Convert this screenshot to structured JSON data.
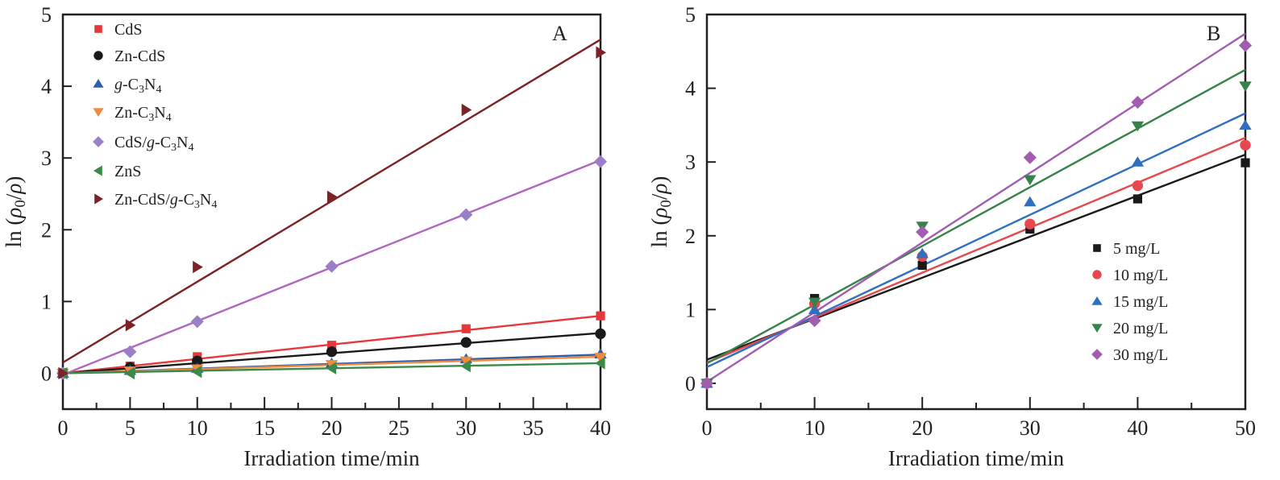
{
  "chart_data": [
    {
      "type": "scatter",
      "panel_label": "A",
      "xlabel": "Irradiation time/min",
      "ylabel": "ln (ρ0/ρ)",
      "ylabel_parts": {
        "prefix": "ln (",
        "rho": "ρ",
        "sub": "0",
        "slash": "/",
        "rho2": "ρ",
        "suffix": ")"
      },
      "xlim": [
        0,
        40
      ],
      "ylim": [
        -0.5,
        5
      ],
      "xticks": [
        0,
        5,
        10,
        15,
        20,
        25,
        30,
        35,
        40
      ],
      "yticks": [
        0,
        1,
        2,
        3,
        4,
        5
      ],
      "grid": false,
      "legend_position": "top-left",
      "series": [
        {
          "name": "CdS",
          "label_parts": [
            {
              "t": "CdS"
            }
          ],
          "marker": "square",
          "color": "#e8373a",
          "x": [
            0,
            5,
            10,
            20,
            30,
            40
          ],
          "y": [
            0,
            0.1,
            0.23,
            0.39,
            0.62,
            0.8
          ],
          "fit": [
            0.0,
            0.8
          ]
        },
        {
          "name": "Zn-CdS",
          "label_parts": [
            {
              "t": "Zn-CdS"
            }
          ],
          "marker": "circle",
          "color": "#1a1a1a",
          "x": [
            0,
            5,
            10,
            20,
            30,
            40
          ],
          "y": [
            0,
            0.08,
            0.17,
            0.3,
            0.43,
            0.55
          ],
          "fit": [
            0.0,
            0.56
          ]
        },
        {
          "name": "g-C3N4",
          "label_parts": [
            {
              "t": "g",
              "i": true
            },
            {
              "t": "-C"
            },
            {
              "t": "3",
              "sub": true
            },
            {
              "t": "N"
            },
            {
              "t": "4",
              "sub": true
            }
          ],
          "marker": "triangle-up",
          "color": "#2f5ea8",
          "x": [
            0,
            5,
            10,
            20,
            30,
            40
          ],
          "y": [
            0,
            0.04,
            0.07,
            0.14,
            0.2,
            0.27
          ],
          "fit": [
            0.0,
            0.26
          ]
        },
        {
          "name": "Zn-C3N4",
          "label_parts": [
            {
              "t": "Zn-C"
            },
            {
              "t": "3",
              "sub": true
            },
            {
              "t": "N"
            },
            {
              "t": "4",
              "sub": true
            }
          ],
          "marker": "triangle-down",
          "color": "#f08a3c",
          "x": [
            0,
            5,
            10,
            20,
            30,
            40
          ],
          "y": [
            0,
            0.03,
            0.06,
            0.12,
            0.17,
            0.22
          ],
          "fit": [
            0.0,
            0.23
          ]
        },
        {
          "name": "CdS/g-C3N4",
          "label_parts": [
            {
              "t": "CdS/"
            },
            {
              "t": "g",
              "i": true
            },
            {
              "t": "-C"
            },
            {
              "t": "3",
              "sub": true
            },
            {
              "t": "N"
            },
            {
              "t": "4",
              "sub": true
            }
          ],
          "marker": "diamond",
          "color": "#9b7fc6",
          "line_color": "#b066c0",
          "x": [
            0,
            5,
            10,
            20,
            30,
            40
          ],
          "y": [
            0,
            0.3,
            0.72,
            1.49,
            2.21,
            2.95
          ],
          "fit": [
            -0.02,
            2.97
          ]
        },
        {
          "name": "ZnS",
          "label_parts": [
            {
              "t": "ZnS"
            }
          ],
          "marker": "triangle-left",
          "color": "#3a8a4a",
          "x": [
            0,
            5,
            10,
            20,
            30,
            40
          ],
          "y": [
            0,
            0.0,
            0.02,
            0.07,
            0.1,
            0.14
          ],
          "fit": [
            0.0,
            0.14
          ]
        },
        {
          "name": "Zn-CdS/g-C3N4",
          "label_parts": [
            {
              "t": "Zn-CdS/"
            },
            {
              "t": "g",
              "i": true
            },
            {
              "t": "-C"
            },
            {
              "t": "3",
              "sub": true
            },
            {
              "t": "N"
            },
            {
              "t": "4",
              "sub": true
            }
          ],
          "marker": "triangle-right",
          "color": "#7b2226",
          "x": [
            0,
            5,
            10,
            20,
            30,
            40
          ],
          "y": [
            0,
            0.67,
            1.48,
            2.46,
            3.67,
            4.47
          ],
          "fit": [
            0.15,
            4.65
          ]
        }
      ]
    },
    {
      "type": "scatter",
      "panel_label": "B",
      "xlabel": "Irradiation time/min",
      "ylabel": "ln (ρ0/ρ)",
      "ylabel_parts": {
        "prefix": "ln (",
        "rho": "ρ",
        "sub": "0",
        "slash": "/",
        "rho2": "ρ",
        "suffix": ")"
      },
      "xlim": [
        0,
        50
      ],
      "ylim": [
        -0.35,
        5
      ],
      "xticks": [
        0,
        10,
        20,
        30,
        40,
        50
      ],
      "yticks": [
        0,
        1,
        2,
        3,
        4,
        5
      ],
      "grid": false,
      "legend_position": "bottom-right",
      "series": [
        {
          "name": "5 mg/L",
          "label_parts": [
            {
              "t": "5 mg/L"
            }
          ],
          "marker": "square",
          "color": "#1a1a1a",
          "x": [
            0,
            10,
            20,
            30,
            40,
            50
          ],
          "y": [
            0,
            1.15,
            1.6,
            2.09,
            2.5,
            2.99
          ],
          "fit": [
            0.32,
            3.1
          ]
        },
        {
          "name": "10 mg/L",
          "label_parts": [
            {
              "t": "10 mg/L"
            }
          ],
          "marker": "circle",
          "color": "#e5484d",
          "x": [
            0,
            10,
            20,
            30,
            40,
            50
          ],
          "y": [
            0,
            1.08,
            1.72,
            2.16,
            2.68,
            3.23
          ],
          "fit": [
            0.28,
            3.33
          ]
        },
        {
          "name": "15 mg/L",
          "label_parts": [
            {
              "t": "15 mg/L"
            }
          ],
          "marker": "triangle-up",
          "color": "#2f6fc0",
          "x": [
            0,
            10,
            20,
            30,
            40,
            50
          ],
          "y": [
            0,
            1.0,
            1.76,
            2.46,
            3.0,
            3.5
          ],
          "fit": [
            0.22,
            3.66
          ]
        },
        {
          "name": "20 mg/L",
          "label_parts": [
            {
              "t": "20 mg/L"
            }
          ],
          "marker": "triangle-down",
          "color": "#35824a",
          "x": [
            0,
            10,
            20,
            30,
            40,
            50
          ],
          "y": [
            0,
            1.1,
            2.13,
            2.76,
            3.49,
            4.03
          ],
          "fit": [
            0.27,
            4.25
          ]
        },
        {
          "name": "30 mg/L",
          "label_parts": [
            {
              "t": "30 mg/L"
            }
          ],
          "marker": "diamond",
          "color": "#a35db0",
          "x": [
            0,
            10,
            20,
            30,
            40,
            50
          ],
          "y": [
            0,
            0.85,
            2.05,
            3.06,
            3.81,
            4.58
          ],
          "fit": [
            0.02,
            4.74
          ]
        }
      ]
    }
  ]
}
